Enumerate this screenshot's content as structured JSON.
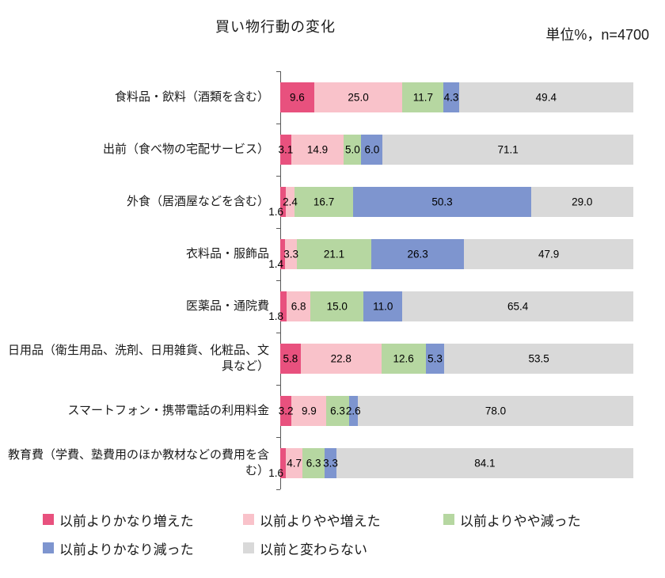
{
  "header": {
    "title": "買い物行動の変化",
    "unit_label": "単位%，n=4700"
  },
  "chart_data": {
    "type": "bar",
    "subtype": "horizontal-stacked",
    "title": "買い物行動の変化",
    "unit_note": "単位%，n=4700",
    "xlim": [
      0,
      100
    ],
    "value_format": "one-decimal",
    "legend_position": "bottom",
    "grid": false,
    "categories": [
      "食料品・飲料（酒類を含む）",
      "出前（食べ物の宅配サービス）",
      "外食（居酒屋などを含む）",
      "衣料品・服飾品",
      "医薬品・通院費",
      "日用品（衛生用品、洗剤、日用雑貨、化粧品、文具など）",
      "スマートフォン・携帯電話の利用料金",
      "教育費（学費、塾費用のほか教材などの費用を含む）"
    ],
    "series": [
      {
        "name": "以前よりかなり増えた",
        "color": "#e8517e",
        "values": [
          9.6,
          3.1,
          1.6,
          1.4,
          1.8,
          5.8,
          3.2,
          1.6
        ]
      },
      {
        "name": "以前よりやや増えた",
        "color": "#f9c2ca",
        "values": [
          25.0,
          14.9,
          2.4,
          3.3,
          6.8,
          22.8,
          9.9,
          4.7
        ]
      },
      {
        "name": "以前よりやや減った",
        "color": "#b6d7a1",
        "values": [
          11.7,
          5.0,
          16.7,
          21.1,
          15.0,
          12.6,
          6.3,
          6.3
        ]
      },
      {
        "name": "以前よりかなり減った",
        "color": "#7e95cf",
        "values": [
          4.3,
          6.0,
          50.3,
          26.3,
          11.0,
          5.3,
          2.6,
          3.3
        ]
      },
      {
        "name": "以前と変わらない",
        "color": "#d9d9d9",
        "values": [
          49.4,
          71.1,
          29.0,
          47.9,
          65.4,
          53.5,
          78.0,
          84.1
        ]
      }
    ]
  }
}
